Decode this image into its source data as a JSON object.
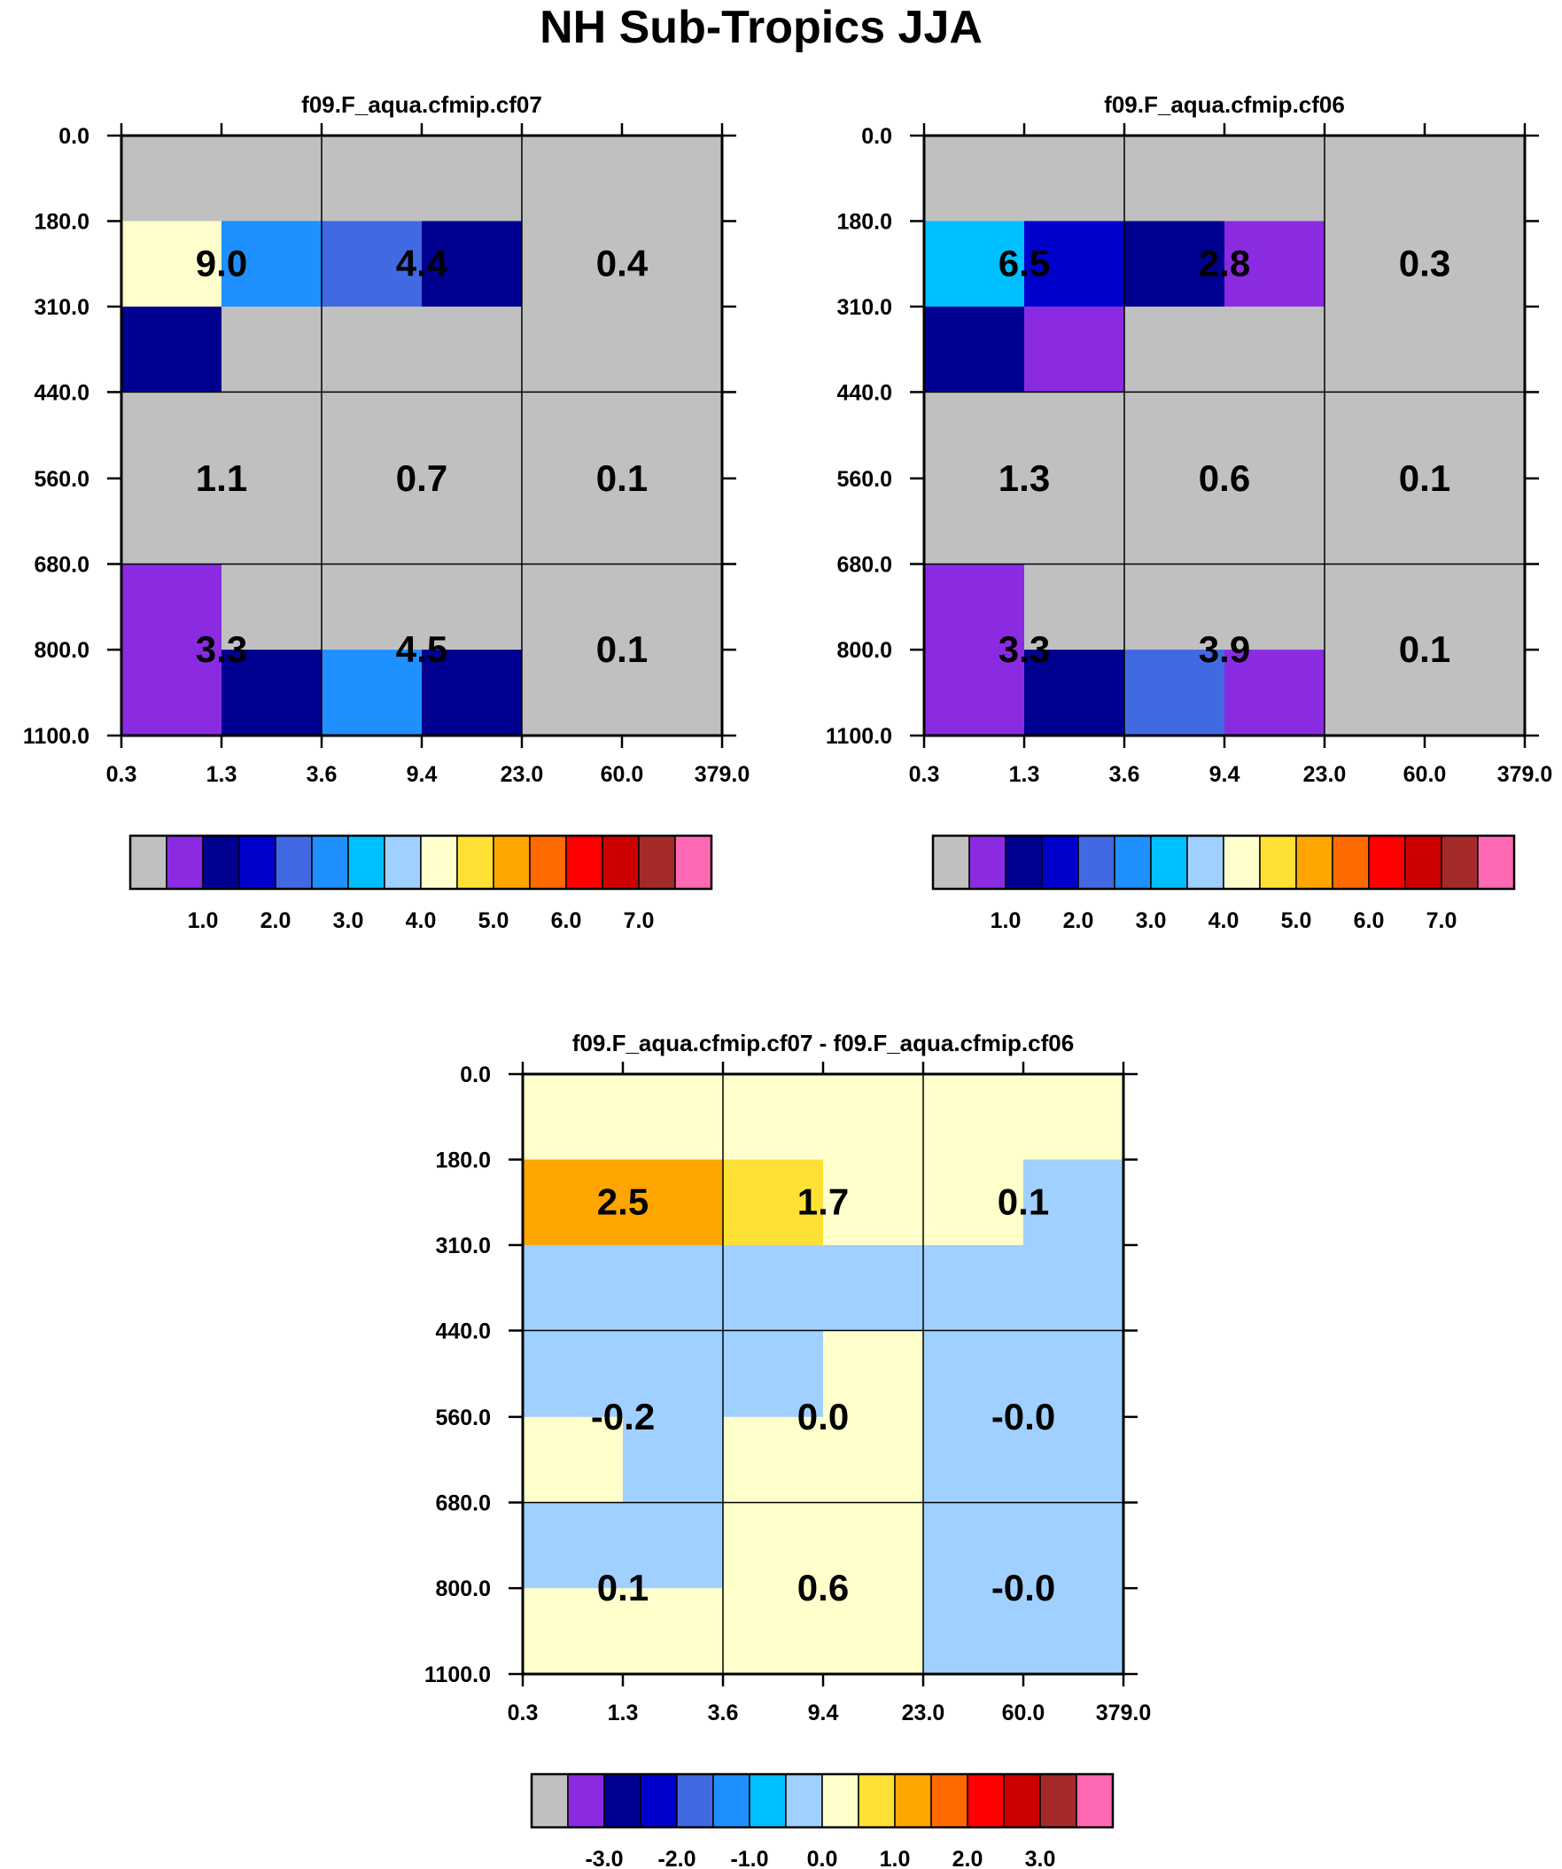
{
  "title": "NH Sub-Tropics JJA",
  "palette": {
    "gray": "#c0c0c0",
    "purple": "#8a2be2",
    "navy": "#000090",
    "blue": "#0000cd",
    "royalblue": "#4169e1",
    "dodgerblue": "#1e90ff",
    "deepskyblue": "#00bfff",
    "lightblue": "#a0d0ff",
    "cream": "#ffffcc",
    "yellow": "#ffe135",
    "orange": "#ffa500",
    "darkorange": "#ff6a00",
    "red": "#ff0000",
    "crimson": "#cd0000",
    "brown": "#a52a2a",
    "pink": "#ff69b4"
  },
  "chart_data": [
    {
      "type": "heatmap",
      "title": "f09.F_aqua.cfmip.cf07",
      "x_ticks": [
        "0.3",
        "1.3",
        "3.6",
        "9.4",
        "23.0",
        "60.0",
        "379.0"
      ],
      "y_ticks": [
        "0.0",
        "180.0",
        "310.0",
        "440.0",
        "560.0",
        "680.0",
        "800.0",
        "1100.0"
      ],
      "cells": [
        [
          "gray",
          "gray",
          "gray",
          "gray",
          "gray",
          "gray"
        ],
        [
          "cream",
          "dodgerblue",
          "royalblue",
          "navy",
          "gray",
          "gray"
        ],
        [
          "navy",
          "gray",
          "gray",
          "gray",
          "gray",
          "gray"
        ],
        [
          "gray",
          "gray",
          "gray",
          "gray",
          "gray",
          "gray"
        ],
        [
          "gray",
          "gray",
          "gray",
          "gray",
          "gray",
          "gray"
        ],
        [
          "purple",
          "gray",
          "gray",
          "gray",
          "gray",
          "gray"
        ],
        [
          "purple",
          "navy",
          "dodgerblue",
          "navy",
          "gray",
          "gray"
        ]
      ],
      "values": [
        [
          "9.0",
          "4.4",
          "0.4"
        ],
        [
          "1.1",
          "0.7",
          "0.1"
        ],
        [
          "3.3",
          "4.5",
          "0.1"
        ]
      ],
      "colorbar": {
        "colors": [
          "gray",
          "purple",
          "navy",
          "blue",
          "royalblue",
          "dodgerblue",
          "deepskyblue",
          "lightblue",
          "cream",
          "yellow",
          "orange",
          "darkorange",
          "red",
          "crimson",
          "brown",
          "pink"
        ],
        "labels": [
          "1.0",
          "2.0",
          "3.0",
          "4.0",
          "5.0",
          "6.0",
          "7.0"
        ]
      }
    },
    {
      "type": "heatmap",
      "title": "f09.F_aqua.cfmip.cf06",
      "x_ticks": [
        "0.3",
        "1.3",
        "3.6",
        "9.4",
        "23.0",
        "60.0",
        "379.0"
      ],
      "y_ticks": [
        "0.0",
        "180.0",
        "310.0",
        "440.0",
        "560.0",
        "680.0",
        "800.0",
        "1100.0"
      ],
      "cells": [
        [
          "gray",
          "gray",
          "gray",
          "gray",
          "gray",
          "gray"
        ],
        [
          "deepskyblue",
          "blue",
          "navy",
          "purple",
          "gray",
          "gray"
        ],
        [
          "navy",
          "purple",
          "gray",
          "gray",
          "gray",
          "gray"
        ],
        [
          "gray",
          "gray",
          "gray",
          "gray",
          "gray",
          "gray"
        ],
        [
          "gray",
          "gray",
          "gray",
          "gray",
          "gray",
          "gray"
        ],
        [
          "purple",
          "gray",
          "gray",
          "gray",
          "gray",
          "gray"
        ],
        [
          "purple",
          "navy",
          "royalblue",
          "purple",
          "gray",
          "gray"
        ]
      ],
      "values": [
        [
          "6.5",
          "2.8",
          "0.3"
        ],
        [
          "1.3",
          "0.6",
          "0.1"
        ],
        [
          "3.3",
          "3.9",
          "0.1"
        ]
      ],
      "colorbar": {
        "colors": [
          "gray",
          "purple",
          "navy",
          "blue",
          "royalblue",
          "dodgerblue",
          "deepskyblue",
          "lightblue",
          "cream",
          "yellow",
          "orange",
          "darkorange",
          "red",
          "crimson",
          "brown",
          "pink"
        ],
        "labels": [
          "1.0",
          "2.0",
          "3.0",
          "4.0",
          "5.0",
          "6.0",
          "7.0"
        ]
      }
    },
    {
      "type": "heatmap",
      "title": "f09.F_aqua.cfmip.cf07 - f09.F_aqua.cfmip.cf06",
      "x_ticks": [
        "0.3",
        "1.3",
        "3.6",
        "9.4",
        "23.0",
        "60.0",
        "379.0"
      ],
      "y_ticks": [
        "0.0",
        "180.0",
        "310.0",
        "440.0",
        "560.0",
        "680.0",
        "800.0",
        "1100.0"
      ],
      "cells": [
        [
          "cream",
          "cream",
          "cream",
          "cream",
          "cream",
          "cream"
        ],
        [
          "orange",
          "orange",
          "yellow",
          "cream",
          "cream",
          "lightblue"
        ],
        [
          "lightblue",
          "lightblue",
          "lightblue",
          "lightblue",
          "lightblue",
          "lightblue"
        ],
        [
          "lightblue",
          "lightblue",
          "lightblue",
          "cream",
          "lightblue",
          "lightblue"
        ],
        [
          "cream",
          "lightblue",
          "cream",
          "cream",
          "lightblue",
          "lightblue"
        ],
        [
          "lightblue",
          "lightblue",
          "cream",
          "cream",
          "lightblue",
          "lightblue"
        ],
        [
          "cream",
          "cream",
          "cream",
          "cream",
          "lightblue",
          "lightblue"
        ]
      ],
      "values": [
        [
          "2.5",
          "1.7",
          "0.1"
        ],
        [
          "-0.2",
          "0.0",
          "-0.0"
        ],
        [
          "0.1",
          "0.6",
          "-0.0"
        ]
      ],
      "colorbar": {
        "colors": [
          "gray",
          "purple",
          "navy",
          "blue",
          "royalblue",
          "dodgerblue",
          "deepskyblue",
          "lightblue",
          "cream",
          "yellow",
          "orange",
          "darkorange",
          "red",
          "crimson",
          "brown",
          "pink"
        ],
        "labels": [
          "-3.0",
          "-2.0",
          "-1.0",
          "0.0",
          "1.0",
          "2.0",
          "3.0"
        ]
      }
    }
  ]
}
